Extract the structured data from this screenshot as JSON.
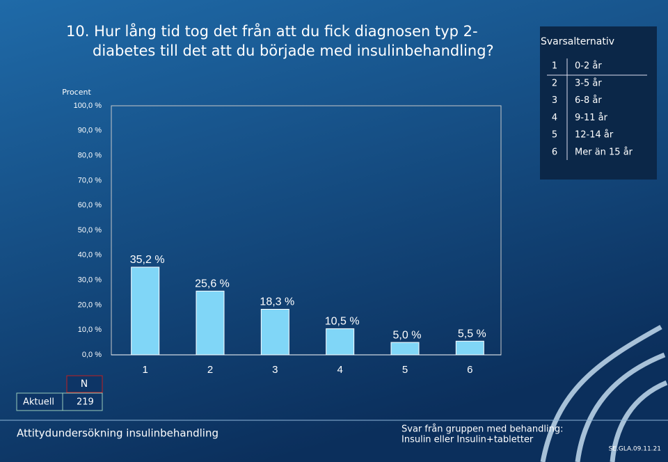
{
  "chart_data": {
    "type": "bar",
    "title": [
      "10. Hur lång tid tog det från att du fick diagnosen typ 2-",
      "diabetes till det att du började med insulinbehandling?"
    ],
    "y_label": "Procent",
    "categories": [
      "1",
      "2",
      "3",
      "4",
      "5",
      "6"
    ],
    "values": [
      35.2,
      25.6,
      18.3,
      10.5,
      5.0,
      5.5
    ],
    "value_labels": [
      "35,2 %",
      "25,6 %",
      "18,3 %",
      "10,5 %",
      "5,0 %",
      "5,5 %"
    ],
    "color": "#80d6f7",
    "ylim": [
      0,
      100
    ],
    "yticks": [
      {
        "value": 0,
        "label": "0,0 %"
      },
      {
        "value": 10,
        "label": "10,0 %"
      },
      {
        "value": 20,
        "label": "20,0 %"
      },
      {
        "value": 30,
        "label": "30,0 %"
      },
      {
        "value": 40,
        "label": "40,0 %"
      },
      {
        "value": 50,
        "label": "50,0 %"
      },
      {
        "value": 60,
        "label": "60,0 %"
      },
      {
        "value": 70,
        "label": "70,0 %"
      },
      {
        "value": 80,
        "label": "80,0 %"
      },
      {
        "value": 90,
        "label": "90,0 %"
      },
      {
        "value": 100,
        "label": "100,0 %"
      }
    ],
    "grid": false
  },
  "legend": {
    "title": "Svarsalternativ",
    "items": [
      {
        "key": "1",
        "label": "0-2 år"
      },
      {
        "key": "2",
        "label": "3-5 år"
      },
      {
        "key": "3",
        "label": "6-8 år"
      },
      {
        "key": "4",
        "label": "9-11 år"
      },
      {
        "key": "5",
        "label": "12-14 år"
      },
      {
        "key": "6",
        "label": "Mer än 15 år"
      }
    ]
  },
  "n_table": {
    "header": "N",
    "row_label": "Aktuell",
    "value": 219
  },
  "footer": {
    "left": "Attitydundersökning insulinbehandling",
    "right": [
      "Svar från gruppen med behandling:",
      "Insulin eller Insulin+tabletter"
    ],
    "code": "SE.GLA.09.11.21"
  }
}
